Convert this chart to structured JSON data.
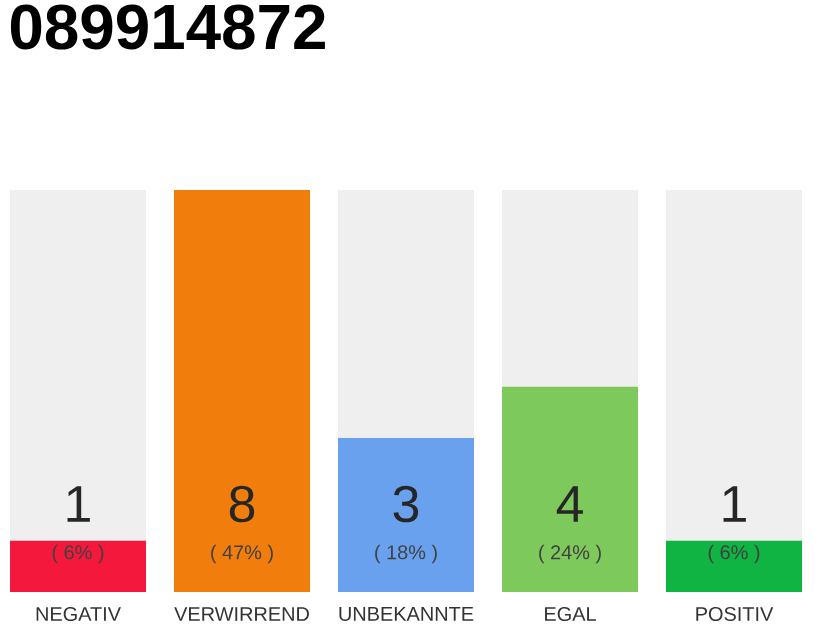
{
  "chart_data": {
    "type": "bar",
    "title": "089914872",
    "categories": [
      "NEGATIV",
      "VERWIRREND",
      "UNBEKANNTE",
      "EGAL",
      "POSITIV"
    ],
    "values": [
      6,
      47,
      18,
      24,
      6
    ],
    "colors": [
      "#f4193c",
      "#f07d0c",
      "#6aa1ef",
      "#7ec95c",
      "#0fb443"
    ],
    "value_labels": [
      "( 6% )",
      "( 47% )",
      "( 18% )",
      "( 24% )",
      "( 6% )"
    ],
    "annotations": [
      "1",
      "8",
      "3",
      "4",
      "1"
    ],
    "tick_labels": "x"
  }
}
